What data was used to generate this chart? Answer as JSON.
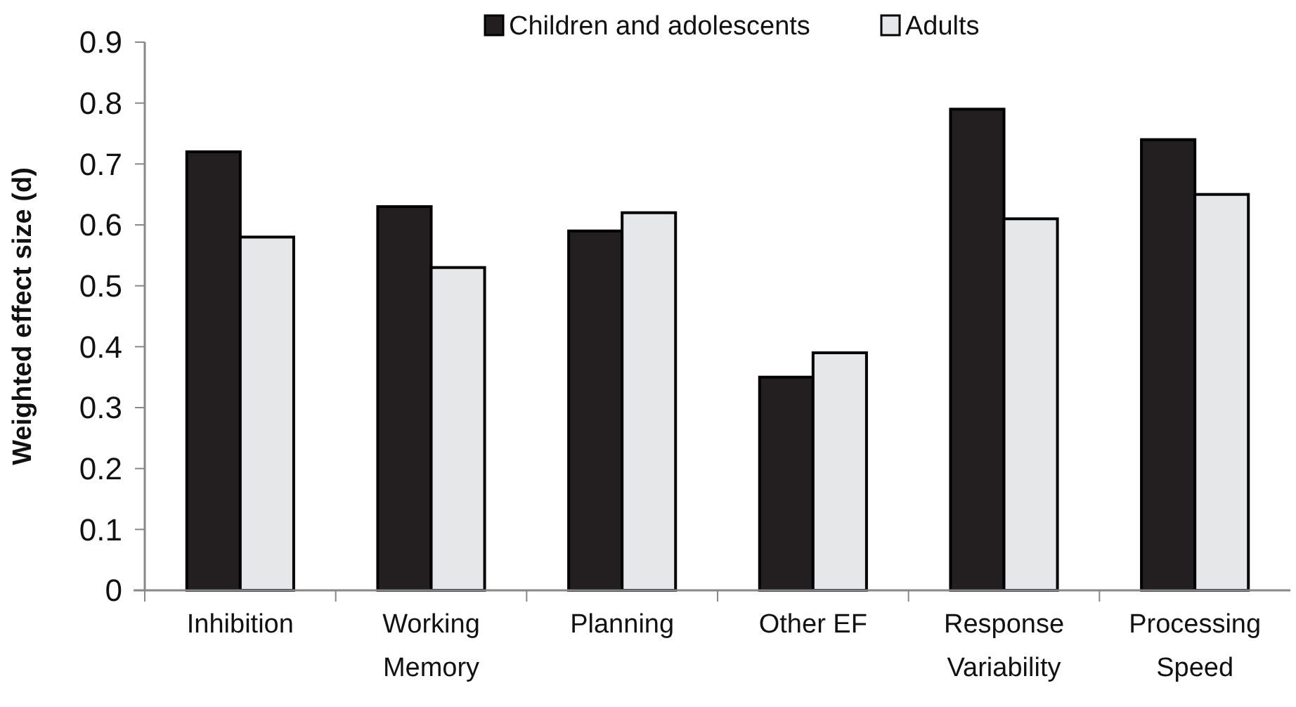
{
  "chart_data": {
    "type": "bar",
    "ylabel": "Weighted effect size (d)",
    "categories": [
      "Inhibition",
      "Working\nMemory",
      "Planning",
      "Other EF",
      "Response\nVariability",
      "Processing\nSpeed"
    ],
    "series": [
      {
        "name": "Children and adolescents",
        "color": "#231f20",
        "values": [
          0.72,
          0.63,
          0.59,
          0.35,
          0.79,
          0.74
        ]
      },
      {
        "name": "Adults",
        "color": "#e6e7e8",
        "values": [
          0.58,
          0.53,
          0.62,
          0.39,
          0.61,
          0.65
        ]
      }
    ],
    "ylim": [
      0,
      0.9
    ],
    "yticks": [
      0,
      0.1,
      0.2,
      0.3,
      0.4,
      0.5,
      0.6,
      0.7,
      0.8,
      0.9
    ],
    "grid": false,
    "legend": "top"
  }
}
